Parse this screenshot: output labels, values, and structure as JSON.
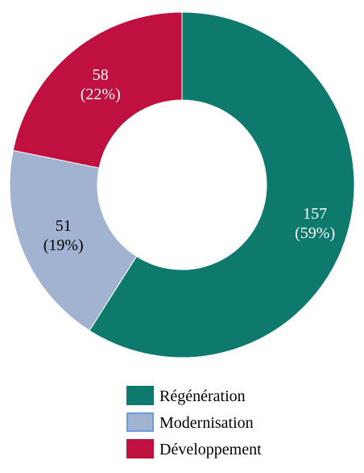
{
  "chart_data": {
    "type": "donut",
    "categories": [
      "Régénération",
      "Modernisation",
      "Développement"
    ],
    "values": [
      157,
      51,
      58
    ],
    "value_labels": [
      "157\n(59%)",
      "51\n(19%)",
      "58\n(22%)"
    ],
    "colors": [
      "#0e7a6d",
      "#a1b3d1",
      "#c0103f"
    ]
  }
}
